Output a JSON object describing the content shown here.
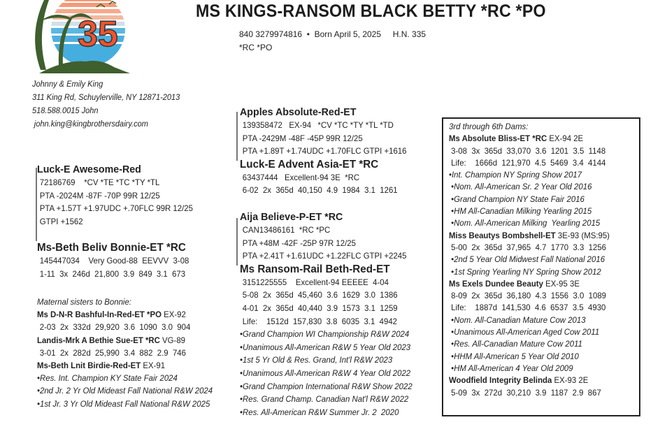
{
  "header": {
    "title": "MS KINGS-RANSOM BLACK BETTY *RC *PO",
    "id_line": "840 3279974816  •  Born April 5, 2025     H.N. 335",
    "codes": "*RC *PO",
    "logo_text": "35"
  },
  "owner": {
    "names": "Johnny & Emily King",
    "address": "311 King Rd, Schuylerville, NY  12871-2013",
    "phone": "518.588.0015 John",
    "email": "john.king@kingbrothersdairy.com"
  },
  "sire": {
    "name": "Luck-E Awesome-Red",
    "lines": [
      "72186769    *CV *TE *TC *TY *TL",
      "PTA -2024M -87F -70P 99R 12/25",
      "PTA +1.57T +1.97UDC +.70FLC 99R 12/25",
      "GTPI +1562"
    ]
  },
  "dam": {
    "name": "Ms-Beth Beliv Bonnie-ET *RC",
    "lines": [
      "145447034    Very Good-88  EEVVV  3-08",
      "1-11  3x  246d  21,800  3.9  849  3.1  673"
    ]
  },
  "sisters": {
    "heading": "Maternal sisters to Bonnie:",
    "items": [
      {
        "name": "Ms D-N-R Bashful-In-Red-ET *PO",
        "score": " EX-92",
        "lines": [
          "2-03  2x  332d  29,920  3.6  1090  3.0  904"
        ]
      },
      {
        "name": "Landis-Mrk A Bethie Sue-ET *RC",
        "score": " VG-89",
        "lines": [
          "3-01  2x  282d  25,990  3.4  882  2.9  746"
        ]
      },
      {
        "name": "Ms-Beth Lnit Birdie-Red-ET",
        "score": " EX-91",
        "lines": [
          "•Res. Int. Champion KY State Fair 2024",
          "•2nd Jr. 2 Yr Old Mideast Fall National R&W 2024",
          "•1st Jr. 3 Yr Old Mideast Fall National R&W 2025"
        ]
      }
    ]
  },
  "dam_sire": {
    "name": "Apples Absolute-Red-ET",
    "lines": [
      "139358472   EX-94   *CV *TC *TY *TL *TD",
      "PTA -2429M -48F -45P 99R 12/25",
      "PTA +1.89T +1.74UDC +1.70FLC GTPI +1616"
    ]
  },
  "sire_dam": {
    "name": "Luck-E Advent Asia-ET *RC",
    "lines": [
      "63437444   Excellent-94 3E  *RC",
      "6-02  2x  365d  40,150  4.9  1984  3.1  1261"
    ]
  },
  "dam_dam_sire": {
    "name": "Aija Believe-P-ET *RC",
    "lines": [
      "CAN13486161  *RC *PC",
      "PTA +48M -42F -25P 97R 12/25",
      "PTA +2.41T +1.61UDC +1.22FLC GTPI +2245"
    ]
  },
  "granddam": {
    "name": "Ms Ransom-Rail Beth-Red-ET",
    "lines": [
      "3151225555    Excellent-94 EEEEE  4-04",
      "5-08  2x  365d  45,460  3.6  1629  3.0  1386",
      "4-01  2x  365d  40,440  3.9  1573  3.1  1259",
      "Life:    1512d  157,830  3.8  6035  3.1  4942"
    ],
    "awards": [
      "•Grand Champion WI Championship R&W 2024",
      "•Unanimous All-American R&W 5 Year Old 2023",
      "•1st 5 Yr Old & Res. Grand, Int'l R&W 2023",
      "•Unanimous All-American R&W 4 Year Old 2022",
      "•Grand Champion International R&W Show 2022",
      "•Res. Grand Champ. Canadian Nat'l R&W 2022",
      "•Res. All-American R&W Summer Jr. 2  2020"
    ]
  },
  "dams_box": {
    "heading": "3rd through 6th Dams:",
    "dams": [
      {
        "name": "Ms Absolute Bliss-ET *RC",
        "score": " EX-94 2E",
        "lines": [
          " 3-08  3x  365d  33,070  3.6  1201  3.5  1148",
          " Life:    1666d  121,970  4.5  5469  3.4  4144"
        ],
        "awards": [
          "•Int. Champion NY Spring Show 2017",
          " •Nom. All-American Sr. 2 Year Old 2016",
          " •Grand Champion NY State Fair 2016",
          " •HM All-Canadian Milking Yearling 2015",
          " •Nom. All-American Milking  Yearling 2015"
        ]
      },
      {
        "name": "Miss Beautys Bombshell-ET",
        "score": " 3E-93 (MS:95)",
        "lines": [
          " 5-00  2x  365d  37,965  4.7  1770  3.3  1256"
        ],
        "awards": [
          " •2nd 5 Year Old Midwest Fall National 2016",
          " •1st Spring Yearling NY Spring Show 2012"
        ]
      },
      {
        "name": "Ms Exels Dundee Beauty",
        "score": " EX-95 3E",
        "lines": [
          " 8-09  2x  365d  36,180  4.3  1556  3.0  1089",
          " Life:    1887d  141,530  4.6  6537  3.5  4930"
        ],
        "awards": [
          " •Nom. All-Canadian Mature Cow 2013",
          " •Unanimous All-American Aged Cow 2011",
          " •Res. All-Canadian Mature Cow 2011",
          " •HHM All-American 5 Year Old 2010",
          " •HM All-American 4 Year Old 2009"
        ]
      },
      {
        "name": "Woodfield Integrity Belinda",
        "score": " EX-93 2E",
        "lines": [
          " 5-09  3x  272d  30,210  3.9  1187  2.9  867"
        ],
        "awards": []
      }
    ]
  }
}
